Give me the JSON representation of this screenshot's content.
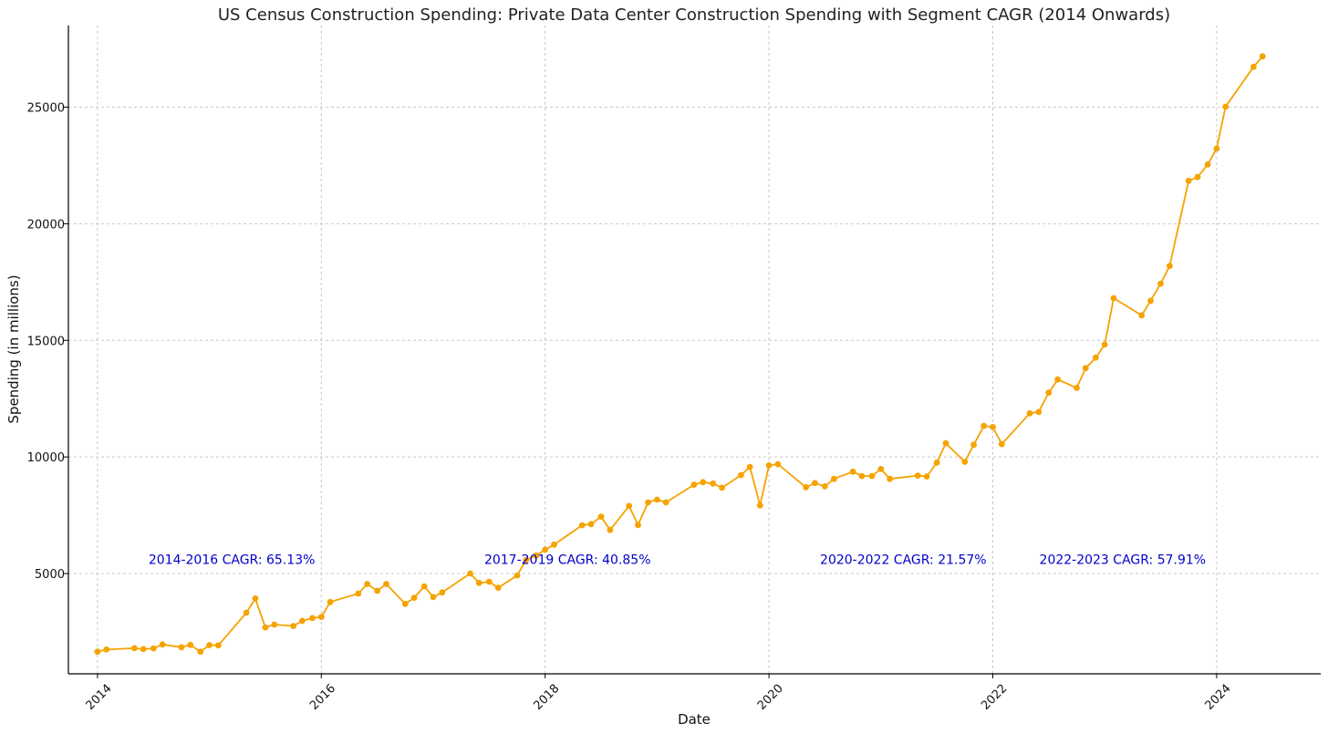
{
  "chart_data": {
    "type": "line",
    "title": "US Census Construction Spending: Private Data Center Construction Spending with Segment CAGR (2014 Onwards)",
    "xlabel": "Date",
    "ylabel": "Spending (in millions)",
    "xlim": [
      2013.74,
      2024.93
    ],
    "ylim": [
      700,
      28500
    ],
    "grid": true,
    "x_ticks": [
      2014,
      2016,
      2018,
      2020,
      2022,
      2024
    ],
    "x_tick_labels": [
      "2014",
      "2016",
      "2018",
      "2020",
      "2022",
      "2024"
    ],
    "y_ticks": [
      5000,
      10000,
      15000,
      20000,
      25000
    ],
    "y_tick_labels": [
      "5000",
      "10000",
      "15000",
      "20000",
      "25000"
    ],
    "line_color": "#f5a300",
    "annotation_color": "#0000cc",
    "series": [
      {
        "name": "Private Data Center Construction Spending",
        "points": [
          [
            2014.0,
            1650
          ],
          [
            2014.08,
            1740
          ],
          [
            2014.33,
            1800
          ],
          [
            2014.41,
            1760
          ],
          [
            2014.5,
            1790
          ],
          [
            2014.58,
            1960
          ],
          [
            2014.75,
            1840
          ],
          [
            2014.83,
            1940
          ],
          [
            2014.92,
            1650
          ],
          [
            2015.0,
            1930
          ],
          [
            2015.08,
            1920
          ],
          [
            2015.33,
            3320
          ],
          [
            2015.41,
            3930
          ],
          [
            2015.5,
            2690
          ],
          [
            2015.58,
            2810
          ],
          [
            2015.75,
            2750
          ],
          [
            2015.83,
            2970
          ],
          [
            2015.92,
            3090
          ],
          [
            2016.0,
            3140
          ],
          [
            2016.08,
            3780
          ],
          [
            2016.33,
            4140
          ],
          [
            2016.41,
            4550
          ],
          [
            2016.5,
            4260
          ],
          [
            2016.58,
            4550
          ],
          [
            2016.75,
            3700
          ],
          [
            2016.83,
            3960
          ],
          [
            2016.92,
            4450
          ],
          [
            2017.0,
            3990
          ],
          [
            2017.08,
            4190
          ],
          [
            2017.33,
            5000
          ],
          [
            2017.41,
            4600
          ],
          [
            2017.5,
            4650
          ],
          [
            2017.58,
            4390
          ],
          [
            2017.75,
            4920
          ],
          [
            2017.83,
            5580
          ],
          [
            2017.92,
            5770
          ],
          [
            2018.0,
            6020
          ],
          [
            2018.08,
            6240
          ],
          [
            2018.33,
            7070
          ],
          [
            2018.41,
            7120
          ],
          [
            2018.5,
            7440
          ],
          [
            2018.58,
            6870
          ],
          [
            2018.75,
            7900
          ],
          [
            2018.83,
            7080
          ],
          [
            2018.92,
            8050
          ],
          [
            2019.0,
            8170
          ],
          [
            2019.08,
            8050
          ],
          [
            2019.33,
            8810
          ],
          [
            2019.41,
            8920
          ],
          [
            2019.5,
            8860
          ],
          [
            2019.58,
            8680
          ],
          [
            2019.75,
            9220
          ],
          [
            2019.83,
            9570
          ],
          [
            2019.92,
            7920
          ],
          [
            2020.0,
            9640
          ],
          [
            2020.08,
            9690
          ],
          [
            2020.33,
            8700
          ],
          [
            2020.41,
            8880
          ],
          [
            2020.5,
            8740
          ],
          [
            2020.58,
            9060
          ],
          [
            2020.75,
            9370
          ],
          [
            2020.83,
            9180
          ],
          [
            2020.92,
            9180
          ],
          [
            2021.0,
            9480
          ],
          [
            2021.08,
            9060
          ],
          [
            2021.33,
            9200
          ],
          [
            2021.41,
            9160
          ],
          [
            2021.5,
            9760
          ],
          [
            2021.58,
            10590
          ],
          [
            2021.75,
            9790
          ],
          [
            2021.83,
            10520
          ],
          [
            2021.92,
            11330
          ],
          [
            2022.0,
            11280
          ],
          [
            2022.08,
            10550
          ],
          [
            2022.33,
            11870
          ],
          [
            2022.41,
            11930
          ],
          [
            2022.5,
            12760
          ],
          [
            2022.58,
            13320
          ],
          [
            2022.75,
            12960
          ],
          [
            2022.83,
            13810
          ],
          [
            2022.92,
            14260
          ],
          [
            2023.0,
            14820
          ],
          [
            2023.08,
            16810
          ],
          [
            2023.33,
            16070
          ],
          [
            2023.41,
            16700
          ],
          [
            2023.5,
            17430
          ],
          [
            2023.58,
            18190
          ],
          [
            2023.75,
            21840
          ],
          [
            2023.83,
            22000
          ],
          [
            2023.92,
            22540
          ],
          [
            2024.0,
            23220
          ],
          [
            2024.08,
            25020
          ],
          [
            2024.33,
            26730
          ],
          [
            2024.41,
            27180
          ]
        ]
      }
    ],
    "annotations": [
      {
        "text": "2014-2016 CAGR: 65.13%",
        "x": 2015.2,
        "y": 5600
      },
      {
        "text": "2017-2019 CAGR: 40.85%",
        "x": 2018.2,
        "y": 5600
      },
      {
        "text": "2020-2022 CAGR: 21.57%",
        "x": 2021.2,
        "y": 5600
      },
      {
        "text": "2022-2023 CAGR: 57.91%",
        "x": 2023.16,
        "y": 5600
      }
    ]
  }
}
